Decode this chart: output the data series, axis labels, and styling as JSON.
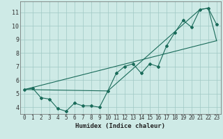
{
  "xlabel": "Humidex (Indice chaleur)",
  "bg_color": "#ceeae6",
  "grid_color": "#a0c8c4",
  "line_color": "#1a6b5a",
  "xlim": [
    -0.5,
    23.5
  ],
  "ylim": [
    3.5,
    11.8
  ],
  "xticks": [
    0,
    1,
    2,
    3,
    4,
    5,
    6,
    7,
    8,
    9,
    10,
    11,
    12,
    13,
    14,
    15,
    16,
    17,
    18,
    19,
    20,
    21,
    22,
    23
  ],
  "yticks": [
    4,
    5,
    6,
    7,
    8,
    9,
    10,
    11
  ],
  "line1_x": [
    0,
    1,
    2,
    3,
    4,
    5,
    6,
    7,
    8,
    9,
    10,
    11,
    12,
    13,
    14,
    15,
    16,
    17,
    18,
    19,
    20,
    21,
    22,
    23
  ],
  "line1_y": [
    5.3,
    5.4,
    4.7,
    4.6,
    3.9,
    3.7,
    4.3,
    4.1,
    4.1,
    4.0,
    5.2,
    6.5,
    7.0,
    7.2,
    6.5,
    7.2,
    7.0,
    8.5,
    9.5,
    10.4,
    9.9,
    11.2,
    11.3,
    10.1
  ],
  "line2_x": [
    0,
    10,
    21,
    22,
    23
  ],
  "line2_y": [
    5.3,
    5.2,
    11.2,
    11.3,
    8.9
  ],
  "line3_x": [
    0,
    23
  ],
  "line3_y": [
    5.3,
    8.9
  ],
  "marker": "D",
  "markersize": 2.0,
  "linewidth": 0.8,
  "tick_fontsize": 5.5,
  "xlabel_fontsize": 6.5
}
